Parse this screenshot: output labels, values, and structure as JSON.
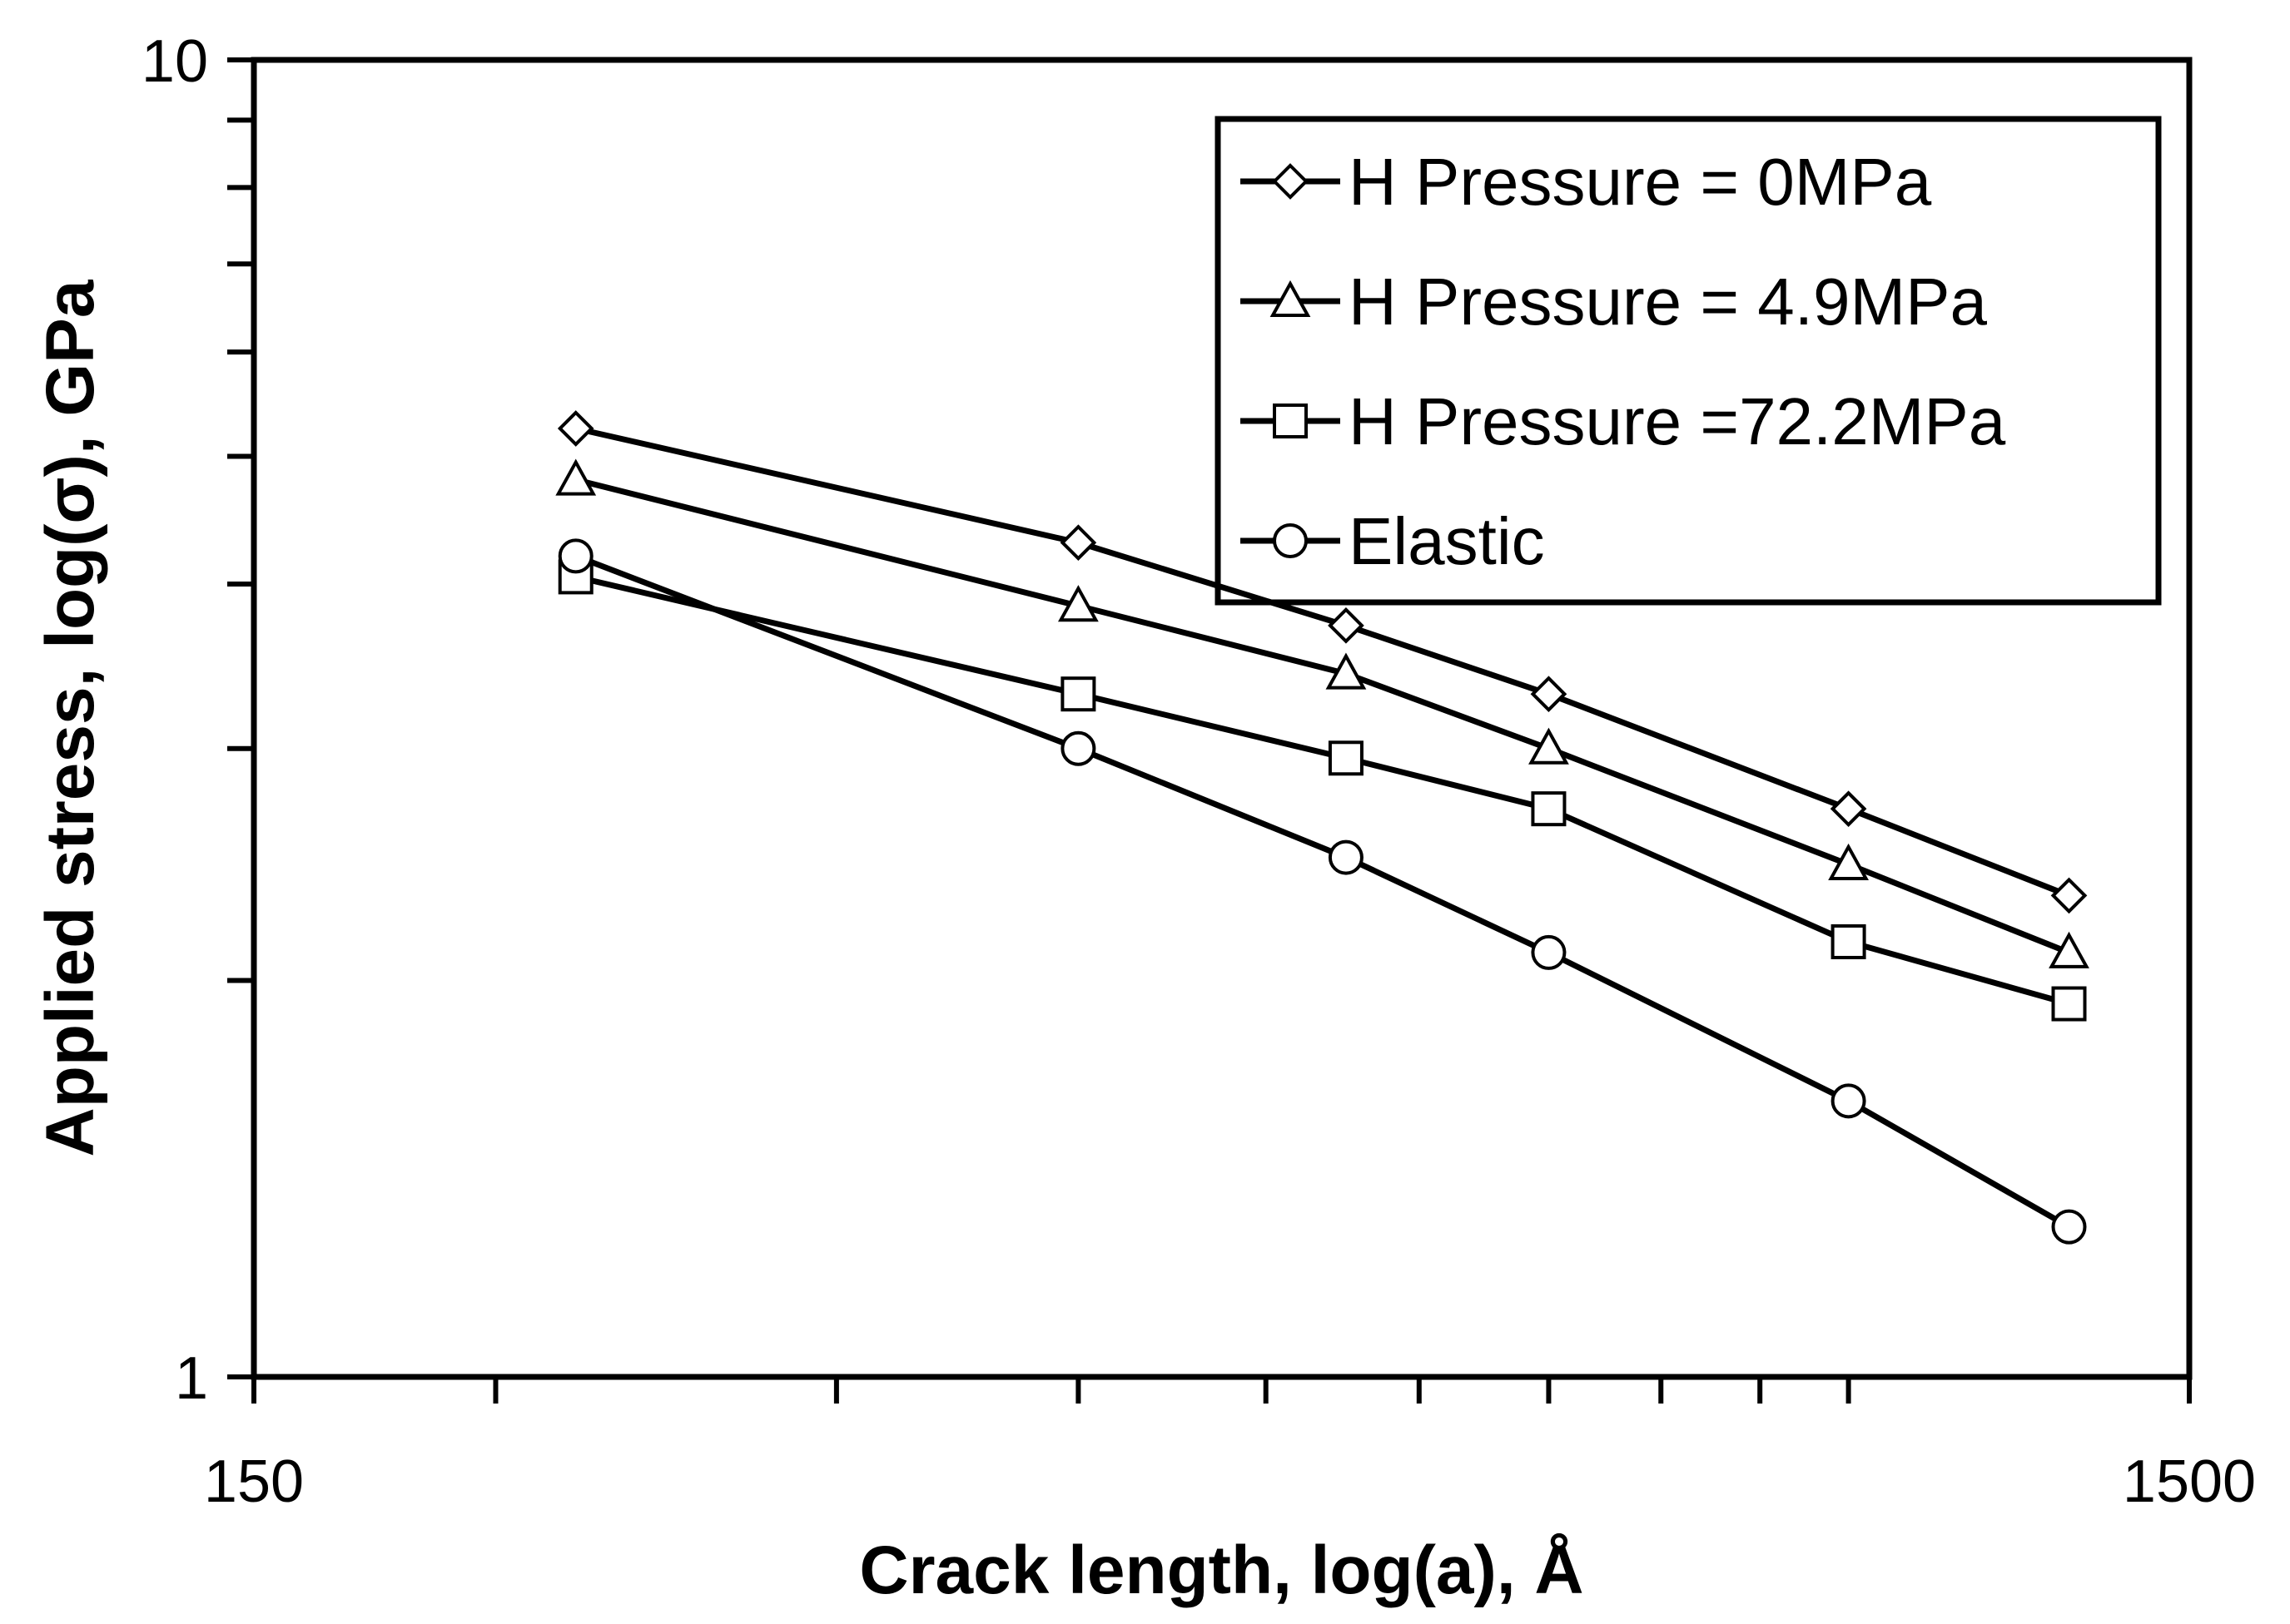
{
  "chart_data": {
    "type": "line",
    "xscale": "log",
    "yscale": "log",
    "xlim": [
      150,
      1500
    ],
    "ylim": [
      1,
      10
    ],
    "xlabel": "Crack length, log(a), Å",
    "ylabel": "Applied stress, log(σ), GPa",
    "x_tick_labels": [
      "150",
      "1500"
    ],
    "y_tick_labels": [
      "1",
      "10"
    ],
    "grid": false,
    "legend_position": "top-right",
    "x": [
      220,
      400,
      550,
      700,
      1000,
      1300
    ],
    "series": [
      {
        "name": "H Pressure = 0MPa",
        "marker": "diamond",
        "values": [
          5.25,
          4.3,
          3.72,
          3.3,
          2.7,
          2.32
        ]
      },
      {
        "name": "H Pressure = 4.9MPa",
        "marker": "triangle",
        "values": [
          4.8,
          3.85,
          3.42,
          3.0,
          2.45,
          2.1
        ]
      },
      {
        "name": "H Pressure =72.2MPa",
        "marker": "square",
        "values": [
          4.05,
          3.3,
          2.95,
          2.7,
          2.14,
          1.92
        ]
      },
      {
        "name": "Elastic",
        "marker": "circle",
        "values": [
          4.2,
          3.0,
          2.48,
          2.1,
          1.62,
          1.3
        ]
      }
    ]
  }
}
